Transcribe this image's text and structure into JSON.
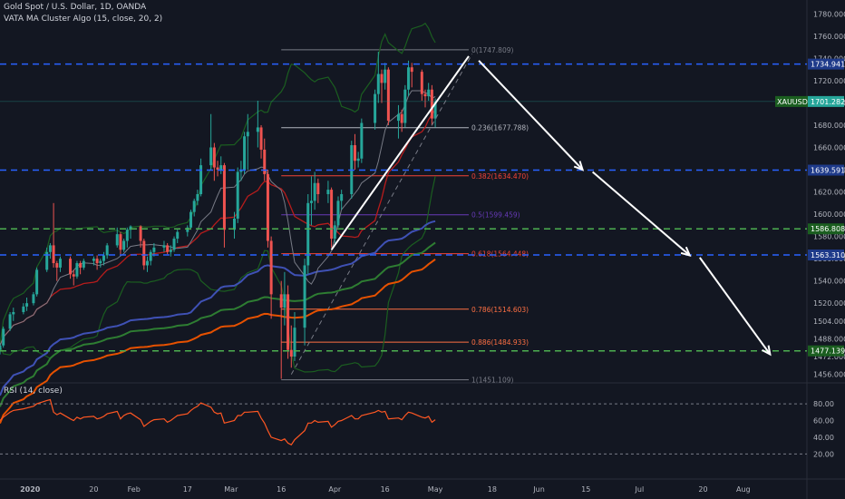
{
  "header": {
    "symbol": "Gold Spot / U.S. Dollar, 1D, OANDA",
    "indicator": "VATA MA Cluster Algo (15, close, 20, 2)",
    "rsi_label": "RSI (14, close)"
  },
  "colors": {
    "background": "#131722",
    "up": "#26a69a",
    "down": "#ef5350",
    "level_blue": "#2962ff",
    "level_green": "#4caf50",
    "ma_red": "#e53935",
    "ma_blue": "#3f51b5",
    "ma_green": "#2e7d32",
    "ma_orange": "#e65100",
    "rsi_line": "#ff5722"
  },
  "chart_data": {
    "type": "candlestick",
    "symbol": "XAUUSD",
    "price_axis": {
      "ticks": [
        1780,
        1760,
        1740,
        1720,
        1700,
        1680,
        1660,
        1640,
        1620,
        1600,
        1580,
        1560,
        1540,
        1520,
        1504,
        1488,
        1472,
        1456
      ],
      "tick_labels": [
        "1780.000",
        "1760.000",
        "1740.000",
        "1720.000",
        "1700.000",
        "1680.000",
        "1660.000",
        "1640.000",
        "1620.000",
        "1600.000",
        "1580.000",
        "1560.000",
        "1540.000",
        "1520.000",
        "1504.000",
        "1488.000",
        "1472.000",
        "1456.000"
      ],
      "range": [
        1450,
        1786
      ]
    },
    "time_axis": {
      "labels": [
        "2020",
        "20",
        "Feb",
        "17",
        "Mar",
        "16",
        "Apr",
        "16",
        "May",
        "18",
        "Jun",
        "15",
        "Jul",
        "20",
        "Aug"
      ],
      "range": [
        "2019-12-23",
        "2020-08-20"
      ]
    },
    "current_price": {
      "label": "XAUUSD",
      "value": "1701.282",
      "price": 1701.282
    },
    "levels": [
      {
        "value": "1734.941",
        "price": 1734.941,
        "style": "blue-dashed"
      },
      {
        "value": "1639.591",
        "price": 1639.591,
        "style": "blue-dashed"
      },
      {
        "value": "1586.808",
        "price": 1586.808,
        "style": "green-dashed"
      },
      {
        "value": "1563.310",
        "price": 1563.31,
        "style": "blue-dashed"
      },
      {
        "value": "1477.139",
        "price": 1477.139,
        "style": "green-dashed"
      }
    ],
    "fibonacci": [
      {
        "ratio": "0",
        "price": 1747.809,
        "label": "0(1747.809)",
        "color": "#787b86"
      },
      {
        "ratio": "0.236",
        "price": 1677.788,
        "label": "0.236(1677.788)",
        "color": "#b2b5be"
      },
      {
        "ratio": "0.382",
        "price": 1634.47,
        "label": "0.382(1634.470)",
        "color": "#f44336"
      },
      {
        "ratio": "0.5",
        "price": 1599.459,
        "label": "0.5(1599.459)",
        "color": "#673ab7"
      },
      {
        "ratio": "0.618",
        "price": 1564.448,
        "label": "0.618(1564.448)",
        "color": "#f44336"
      },
      {
        "ratio": "0.786",
        "price": 1514.603,
        "label": "0.786(1514.603)",
        "color": "#ff7043"
      },
      {
        "ratio": "0.886",
        "price": 1484.933,
        "label": "0.886(1484.933)",
        "color": "#ff7043"
      },
      {
        "ratio": "1",
        "price": 1451.109,
        "label": "1(1451.109)",
        "color": "#787b86"
      }
    ],
    "candles": [
      {
        "date": "2019-12-23",
        "o": 1478,
        "h": 1484,
        "l": 1474,
        "c": 1482
      },
      {
        "date": "2019-12-24",
        "o": 1482,
        "h": 1499,
        "l": 1480,
        "c": 1497
      },
      {
        "date": "2019-12-26",
        "o": 1497,
        "h": 1512,
        "l": 1495,
        "c": 1510
      },
      {
        "date": "2019-12-27",
        "o": 1510,
        "h": 1516,
        "l": 1504,
        "c": 1512
      },
      {
        "date": "2019-12-30",
        "o": 1512,
        "h": 1520,
        "l": 1510,
        "c": 1517
      },
      {
        "date": "2019-12-31",
        "o": 1517,
        "h": 1525,
        "l": 1513,
        "c": 1520
      },
      {
        "date": "2020-01-02",
        "o": 1520,
        "h": 1530,
        "l": 1518,
        "c": 1528
      },
      {
        "date": "2020-01-03",
        "o": 1528,
        "h": 1552,
        "l": 1526,
        "c": 1550
      },
      {
        "date": "2020-01-06",
        "o": 1550,
        "h": 1570,
        "l": 1548,
        "c": 1566
      },
      {
        "date": "2020-01-07",
        "o": 1566,
        "h": 1574,
        "l": 1560,
        "c": 1572
      },
      {
        "date": "2020-01-08",
        "o": 1572,
        "h": 1610,
        "l": 1552,
        "c": 1556
      },
      {
        "date": "2020-01-09",
        "o": 1556,
        "h": 1558,
        "l": 1540,
        "c": 1552
      },
      {
        "date": "2020-01-10",
        "o": 1552,
        "h": 1562,
        "l": 1548,
        "c": 1560
      },
      {
        "date": "2020-01-13",
        "o": 1560,
        "h": 1562,
        "l": 1542,
        "c": 1546
      },
      {
        "date": "2020-01-14",
        "o": 1546,
        "h": 1550,
        "l": 1536,
        "c": 1544
      },
      {
        "date": "2020-01-15",
        "o": 1544,
        "h": 1558,
        "l": 1542,
        "c": 1556
      },
      {
        "date": "2020-01-16",
        "o": 1556,
        "h": 1558,
        "l": 1546,
        "c": 1552
      },
      {
        "date": "2020-01-17",
        "o": 1552,
        "h": 1560,
        "l": 1550,
        "c": 1558
      },
      {
        "date": "2020-01-20",
        "o": 1558,
        "h": 1562,
        "l": 1554,
        "c": 1560
      },
      {
        "date": "2020-01-21",
        "o": 1560,
        "h": 1563,
        "l": 1550,
        "c": 1556
      },
      {
        "date": "2020-01-22",
        "o": 1556,
        "h": 1560,
        "l": 1552,
        "c": 1558
      },
      {
        "date": "2020-01-23",
        "o": 1558,
        "h": 1566,
        "l": 1554,
        "c": 1563
      },
      {
        "date": "2020-01-24",
        "o": 1563,
        "h": 1574,
        "l": 1560,
        "c": 1572
      },
      {
        "date": "2020-01-27",
        "o": 1572,
        "h": 1588,
        "l": 1570,
        "c": 1582
      },
      {
        "date": "2020-01-28",
        "o": 1582,
        "h": 1584,
        "l": 1564,
        "c": 1568
      },
      {
        "date": "2020-01-29",
        "o": 1568,
        "h": 1578,
        "l": 1566,
        "c": 1576
      },
      {
        "date": "2020-01-30",
        "o": 1576,
        "h": 1588,
        "l": 1570,
        "c": 1586
      },
      {
        "date": "2020-01-31",
        "o": 1586,
        "h": 1590,
        "l": 1578,
        "c": 1589
      },
      {
        "date": "2020-02-03",
        "o": 1589,
        "h": 1590,
        "l": 1570,
        "c": 1576
      },
      {
        "date": "2020-02-04",
        "o": 1576,
        "h": 1578,
        "l": 1550,
        "c": 1554
      },
      {
        "date": "2020-02-05",
        "o": 1554,
        "h": 1562,
        "l": 1548,
        "c": 1558
      },
      {
        "date": "2020-02-06",
        "o": 1558,
        "h": 1568,
        "l": 1554,
        "c": 1566
      },
      {
        "date": "2020-02-07",
        "o": 1566,
        "h": 1574,
        "l": 1562,
        "c": 1570
      },
      {
        "date": "2020-02-10",
        "o": 1570,
        "h": 1576,
        "l": 1566,
        "c": 1572
      },
      {
        "date": "2020-02-11",
        "o": 1572,
        "h": 1574,
        "l": 1564,
        "c": 1566
      },
      {
        "date": "2020-02-12",
        "o": 1566,
        "h": 1572,
        "l": 1562,
        "c": 1568
      },
      {
        "date": "2020-02-13",
        "o": 1568,
        "h": 1580,
        "l": 1566,
        "c": 1578
      },
      {
        "date": "2020-02-14",
        "o": 1578,
        "h": 1586,
        "l": 1574,
        "c": 1584
      },
      {
        "date": "2020-02-17",
        "o": 1584,
        "h": 1590,
        "l": 1580,
        "c": 1588
      },
      {
        "date": "2020-02-18",
        "o": 1588,
        "h": 1604,
        "l": 1586,
        "c": 1602
      },
      {
        "date": "2020-02-19",
        "o": 1602,
        "h": 1614,
        "l": 1598,
        "c": 1612
      },
      {
        "date": "2020-02-20",
        "o": 1612,
        "h": 1622,
        "l": 1608,
        "c": 1618
      },
      {
        "date": "2020-02-21",
        "o": 1618,
        "h": 1650,
        "l": 1616,
        "c": 1644
      },
      {
        "date": "2020-02-24",
        "o": 1644,
        "h": 1690,
        "l": 1640,
        "c": 1660
      },
      {
        "date": "2020-02-25",
        "o": 1660,
        "h": 1664,
        "l": 1630,
        "c": 1642
      },
      {
        "date": "2020-02-26",
        "o": 1642,
        "h": 1648,
        "l": 1634,
        "c": 1640
      },
      {
        "date": "2020-02-27",
        "o": 1640,
        "h": 1652,
        "l": 1636,
        "c": 1644
      },
      {
        "date": "2020-02-28",
        "o": 1644,
        "h": 1646,
        "l": 1570,
        "c": 1586
      },
      {
        "date": "2020-03-02",
        "o": 1586,
        "h": 1602,
        "l": 1578,
        "c": 1596
      },
      {
        "date": "2020-03-03",
        "o": 1596,
        "h": 1642,
        "l": 1592,
        "c": 1638
      },
      {
        "date": "2020-03-04",
        "o": 1638,
        "h": 1648,
        "l": 1630,
        "c": 1640
      },
      {
        "date": "2020-03-05",
        "o": 1640,
        "h": 1674,
        "l": 1636,
        "c": 1670
      },
      {
        "date": "2020-03-06",
        "o": 1670,
        "h": 1690,
        "l": 1640,
        "c": 1674
      },
      {
        "date": "2020-03-09",
        "o": 1674,
        "h": 1702,
        "l": 1660,
        "c": 1678
      },
      {
        "date": "2020-03-10",
        "o": 1678,
        "h": 1680,
        "l": 1650,
        "c": 1658
      },
      {
        "date": "2020-03-11",
        "o": 1658,
        "h": 1668,
        "l": 1630,
        "c": 1636
      },
      {
        "date": "2020-03-12",
        "o": 1636,
        "h": 1640,
        "l": 1570,
        "c": 1576
      },
      {
        "date": "2020-03-13",
        "o": 1576,
        "h": 1580,
        "l": 1506,
        "c": 1528
      },
      {
        "date": "2020-03-16",
        "o": 1528,
        "h": 1540,
        "l": 1452,
        "c": 1516
      },
      {
        "date": "2020-03-17",
        "o": 1516,
        "h": 1548,
        "l": 1500,
        "c": 1528
      },
      {
        "date": "2020-03-18",
        "o": 1528,
        "h": 1536,
        "l": 1470,
        "c": 1478
      },
      {
        "date": "2020-03-19",
        "o": 1478,
        "h": 1500,
        "l": 1462,
        "c": 1472
      },
      {
        "date": "2020-03-20",
        "o": 1472,
        "h": 1512,
        "l": 1468,
        "c": 1498
      },
      {
        "date": "2020-03-23",
        "o": 1498,
        "h": 1560,
        "l": 1482,
        "c": 1554
      },
      {
        "date": "2020-03-24",
        "o": 1554,
        "h": 1618,
        "l": 1546,
        "c": 1610
      },
      {
        "date": "2020-03-25",
        "o": 1610,
        "h": 1634,
        "l": 1590,
        "c": 1612
      },
      {
        "date": "2020-03-26",
        "o": 1612,
        "h": 1638,
        "l": 1604,
        "c": 1628
      },
      {
        "date": "2020-03-27",
        "o": 1628,
        "h": 1632,
        "l": 1610,
        "c": 1618
      },
      {
        "date": "2020-03-30",
        "o": 1618,
        "h": 1630,
        "l": 1610,
        "c": 1622
      },
      {
        "date": "2020-03-31",
        "o": 1622,
        "h": 1624,
        "l": 1570,
        "c": 1578
      },
      {
        "date": "2020-04-01",
        "o": 1578,
        "h": 1594,
        "l": 1574,
        "c": 1590
      },
      {
        "date": "2020-04-02",
        "o": 1590,
        "h": 1616,
        "l": 1588,
        "c": 1612
      },
      {
        "date": "2020-04-03",
        "o": 1612,
        "h": 1622,
        "l": 1604,
        "c": 1618
      },
      {
        "date": "2020-04-06",
        "o": 1618,
        "h": 1666,
        "l": 1614,
        "c": 1662
      },
      {
        "date": "2020-04-07",
        "o": 1662,
        "h": 1672,
        "l": 1640,
        "c": 1648
      },
      {
        "date": "2020-04-08",
        "o": 1648,
        "h": 1656,
        "l": 1642,
        "c": 1650
      },
      {
        "date": "2020-04-09",
        "o": 1650,
        "h": 1686,
        "l": 1646,
        "c": 1682
      },
      {
        "date": "2020-04-13",
        "o": 1682,
        "h": 1712,
        "l": 1676,
        "c": 1708
      },
      {
        "date": "2020-04-14",
        "o": 1708,
        "h": 1746,
        "l": 1700,
        "c": 1726
      },
      {
        "date": "2020-04-15",
        "o": 1726,
        "h": 1730,
        "l": 1700,
        "c": 1718
      },
      {
        "date": "2020-04-16",
        "o": 1718,
        "h": 1736,
        "l": 1712,
        "c": 1730
      },
      {
        "date": "2020-04-17",
        "o": 1730,
        "h": 1732,
        "l": 1680,
        "c": 1684
      },
      {
        "date": "2020-04-20",
        "o": 1684,
        "h": 1698,
        "l": 1668,
        "c": 1690
      },
      {
        "date": "2020-04-21",
        "o": 1690,
        "h": 1694,
        "l": 1674,
        "c": 1682
      },
      {
        "date": "2020-04-22",
        "o": 1682,
        "h": 1716,
        "l": 1678,
        "c": 1712
      },
      {
        "date": "2020-04-23",
        "o": 1712,
        "h": 1738,
        "l": 1706,
        "c": 1732
      },
      {
        "date": "2020-04-24",
        "o": 1732,
        "h": 1736,
        "l": 1714,
        "c": 1728
      },
      {
        "date": "2020-04-27",
        "o": 1728,
        "h": 1730,
        "l": 1702,
        "c": 1708
      },
      {
        "date": "2020-04-28",
        "o": 1708,
        "h": 1712,
        "l": 1696,
        "c": 1706
      },
      {
        "date": "2020-04-29",
        "o": 1706,
        "h": 1718,
        "l": 1702,
        "c": 1712
      },
      {
        "date": "2020-04-30",
        "o": 1712,
        "h": 1716,
        "l": 1680,
        "c": 1686
      },
      {
        "date": "2020-05-01",
        "o": 1686,
        "h": 1704,
        "l": 1678,
        "c": 1701
      }
    ],
    "rsi": {
      "name": "RSI (14, close)",
      "ticks": [
        80,
        60,
        40,
        20
      ],
      "tick_labels": [
        "80.00",
        "60.00",
        "40.00",
        "20.00"
      ],
      "range": [
        15,
        92
      ],
      "values": [
        60,
        64,
        70,
        72,
        74,
        75,
        77,
        80,
        84,
        85,
        70,
        67,
        69,
        62,
        60,
        64,
        62,
        64,
        65,
        62,
        63,
        65,
        68,
        71,
        62,
        66,
        68,
        69,
        61,
        53,
        56,
        59,
        61,
        62,
        58,
        60,
        63,
        66,
        68,
        72,
        75,
        77,
        81,
        76,
        70,
        68,
        69,
        57,
        60,
        66,
        66,
        70,
        70,
        71,
        63,
        57,
        48,
        40,
        36,
        38,
        33,
        31,
        37,
        48,
        57,
        57,
        60,
        58,
        59,
        52,
        55,
        59,
        60,
        66,
        62,
        62,
        66,
        70,
        72,
        70,
        71,
        62,
        63,
        61,
        66,
        70,
        69,
        64,
        63,
        65,
        58,
        61
      ]
    }
  }
}
